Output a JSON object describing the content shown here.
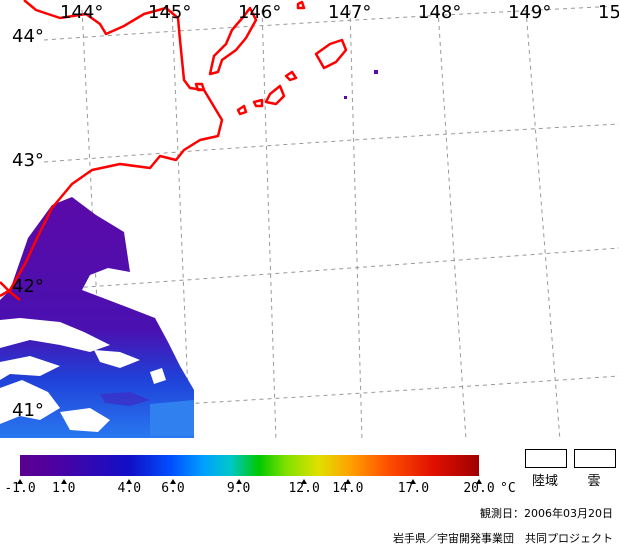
{
  "map": {
    "longitude_labels": [
      "144°",
      "145°",
      "146°",
      "147°",
      "148°",
      "149°",
      "15"
    ],
    "latitude_labels": [
      "44°",
      "43°",
      "42°",
      "41°"
    ],
    "coastline_color": "#ff0000",
    "grid_color": "#999999"
  },
  "legend": {
    "ticks": [
      "-1.0",
      "1.0",
      "4.0",
      "6.0",
      "9.0",
      "12.0",
      "14.0",
      "17.0",
      "20.0"
    ],
    "tick_values": [
      -1.0,
      1.0,
      4.0,
      6.0,
      9.0,
      12.0,
      14.0,
      17.0,
      20.0
    ],
    "min": -1.0,
    "max": 20.0,
    "unit": "°C",
    "land_label": "陸域",
    "cloud_label": "雲"
  },
  "observation_date": "観測日：2006年03月20日",
  "credit": "岩手県／宇宙開発事業団　共同プロジェクト"
}
